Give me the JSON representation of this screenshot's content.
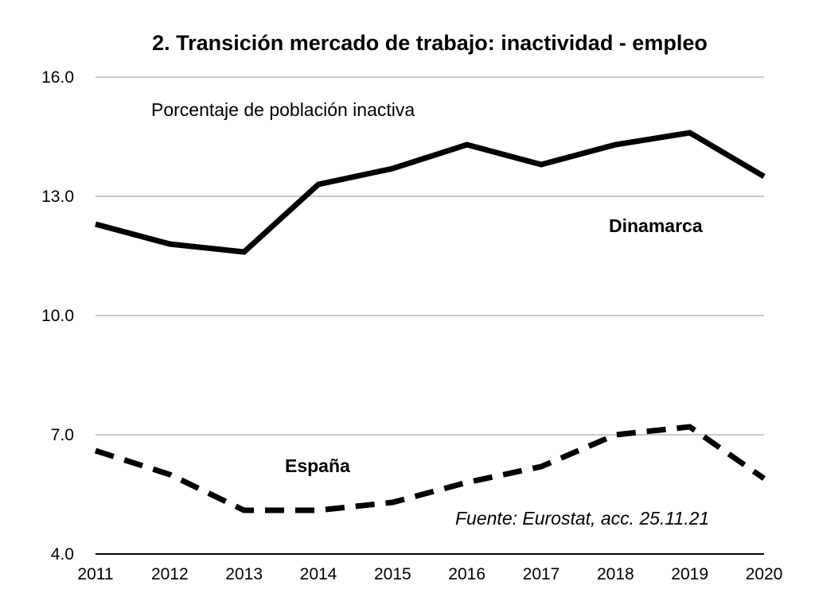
{
  "chart_data": {
    "type": "line",
    "title": "2. Transición mercado de trabajo: inactividad - empleo",
    "subtitle": "Porcentaje de población inactiva",
    "source": "Fuente: Eurostat, acc. 25.11.21",
    "xlabel": "",
    "ylabel": "",
    "categories": [
      "2011",
      "2012",
      "2013",
      "2014",
      "2015",
      "2016",
      "2017",
      "2018",
      "2019",
      "2020"
    ],
    "y_ticks": [
      "4.0",
      "7.0",
      "10.0",
      "13.0",
      "16.0"
    ],
    "ylim": [
      4.0,
      16.0
    ],
    "grid": true,
    "legend": "none (series labelled inline)",
    "series": [
      {
        "name": "Dinamarca",
        "style": "solid",
        "color": "#000000",
        "values": [
          12.3,
          11.8,
          11.6,
          13.3,
          13.7,
          14.3,
          13.8,
          14.3,
          14.6,
          13.5
        ]
      },
      {
        "name": "España",
        "style": "dashed",
        "color": "#000000",
        "values": [
          6.6,
          6.0,
          5.1,
          5.1,
          5.3,
          5.8,
          6.2,
          7.0,
          7.2,
          5.9
        ]
      }
    ]
  }
}
